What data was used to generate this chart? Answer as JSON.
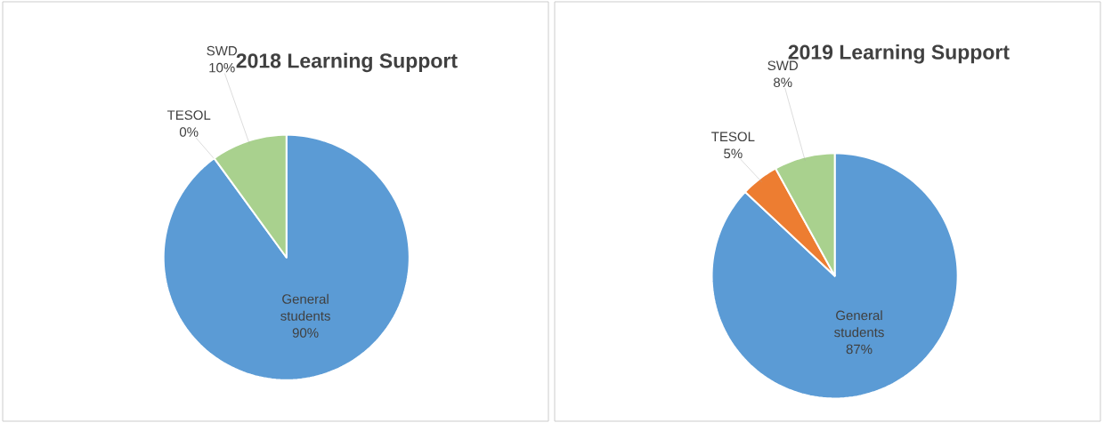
{
  "chart_data": [
    {
      "type": "pie",
      "title": "2018 Learning Support",
      "categories": [
        "General students",
        "TESOL",
        "SWD"
      ],
      "values": [
        90,
        0,
        10
      ],
      "colors": [
        "#5b9bd5",
        "#ed7d31",
        "#a9d18e"
      ],
      "value_labels": [
        "90%",
        "0%",
        "10%"
      ]
    },
    {
      "type": "pie",
      "title": "2019 Learning Support",
      "categories": [
        "General students",
        "TESOL",
        "SWD"
      ],
      "values": [
        87,
        5,
        8
      ],
      "colors": [
        "#5b9bd5",
        "#ed7d31",
        "#a9d18e"
      ],
      "value_labels": [
        "87%",
        "5%",
        "8%"
      ]
    }
  ]
}
